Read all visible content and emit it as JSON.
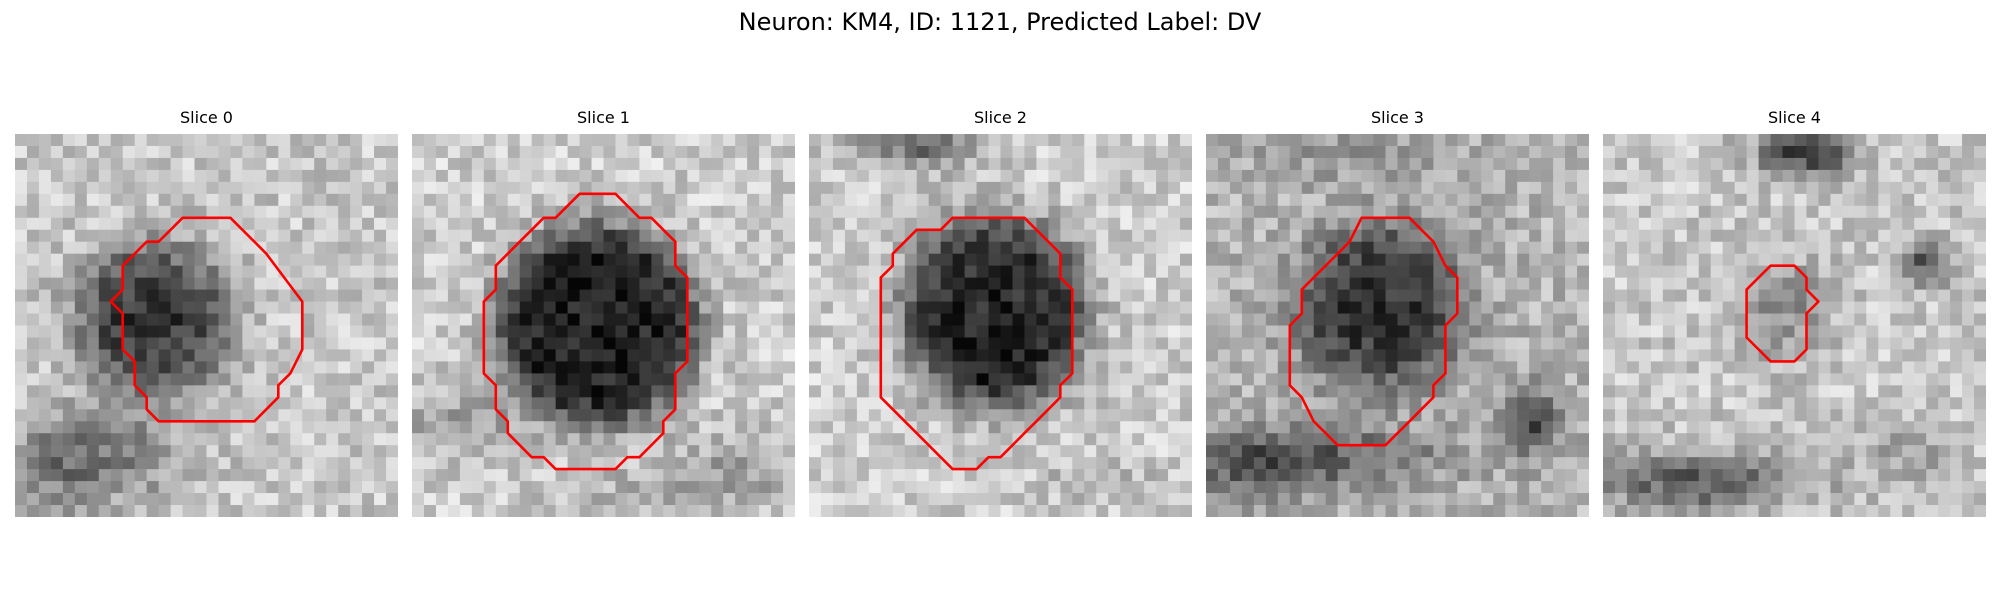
{
  "figure": {
    "title": "Neuron: KM4, ID: 1121, Predicted Label: DV",
    "contour_color": "#ff0000"
  },
  "panels": [
    {
      "title": "Slice 0"
    },
    {
      "title": "Slice 1"
    },
    {
      "title": "Slice 2"
    },
    {
      "title": "Slice 3"
    },
    {
      "title": "Slice 4"
    }
  ]
}
